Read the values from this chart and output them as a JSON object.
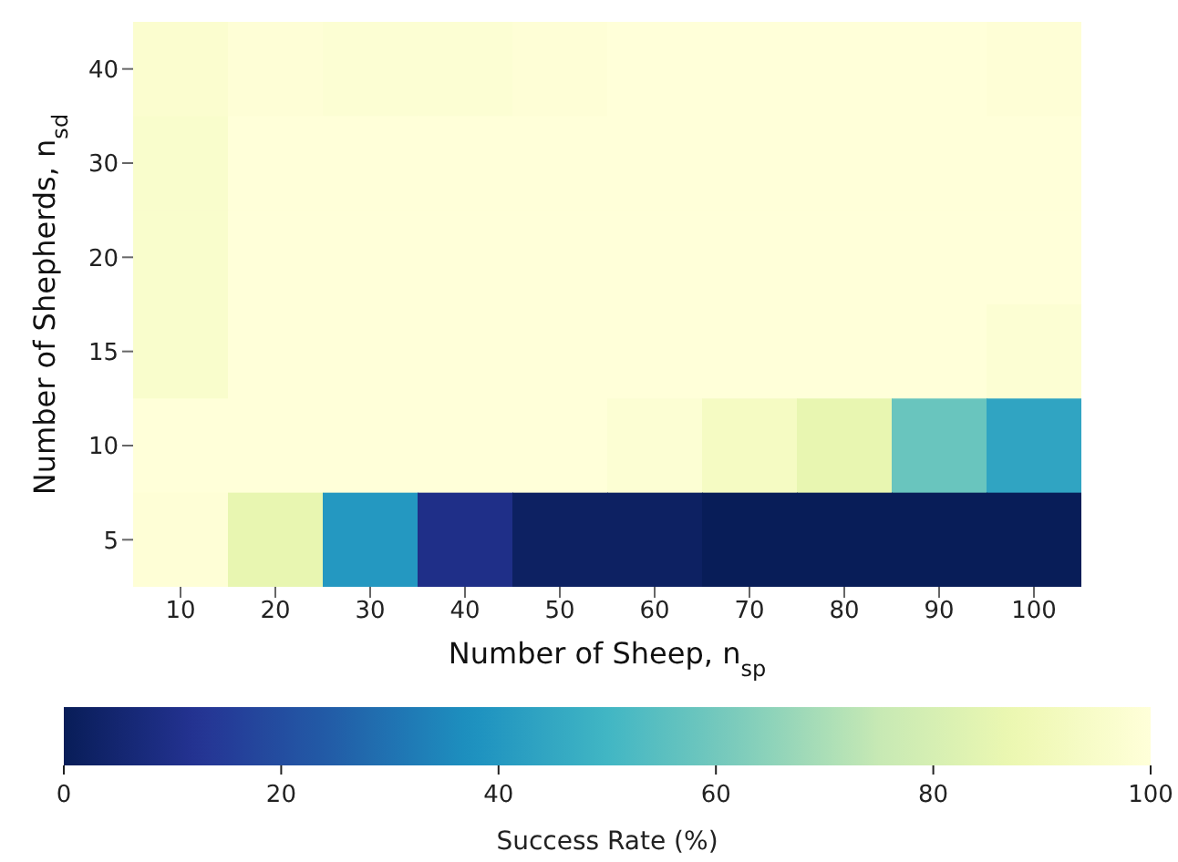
{
  "chart_data": {
    "type": "heatmap",
    "xlabel": "Number of Sheep, n$_{sp}$",
    "ylabel": "Number of Shepherds, n$_{sd}$",
    "clabel": "Success Rate (%)",
    "categories": [
      "10",
      "20",
      "30",
      "40",
      "50",
      "60",
      "70",
      "80",
      "90",
      "100"
    ],
    "y_categories": [
      "40",
      "30",
      "20",
      "15",
      "10",
      "5"
    ],
    "cells": [
      [
        97,
        99,
        98,
        98,
        99,
        100,
        100,
        100,
        100,
        99
      ],
      [
        96,
        100,
        100,
        100,
        100,
        100,
        100,
        100,
        100,
        100
      ],
      [
        96,
        100,
        100,
        100,
        100,
        100,
        100,
        100,
        100,
        100
      ],
      [
        96,
        100,
        100,
        100,
        100,
        100,
        100,
        100,
        100,
        98
      ],
      [
        100,
        100,
        100,
        100,
        100,
        98,
        93,
        86,
        58,
        44
      ],
      [
        99,
        86,
        40,
        10,
        2,
        2,
        0,
        0,
        0,
        0
      ]
    ],
    "clim": [
      0,
      100
    ],
    "cticks": [
      0,
      20,
      40,
      60,
      80,
      100
    ]
  }
}
